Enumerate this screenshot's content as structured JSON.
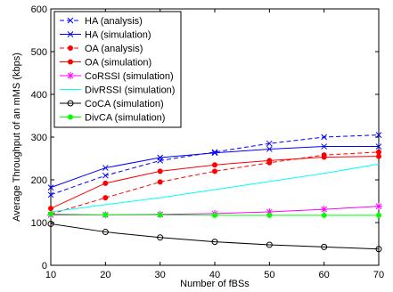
{
  "chart_data": {
    "type": "line",
    "xlabel": "Number of fBSs",
    "ylabel": "Average Throughput of an mMS (kbps)",
    "xlim": [
      10,
      70
    ],
    "ylim": [
      0,
      600
    ],
    "xticks": [
      10,
      20,
      30,
      40,
      50,
      60,
      70
    ],
    "yticks": [
      0,
      100,
      200,
      300,
      400,
      500,
      600
    ],
    "grid": false,
    "legend_position": "top-left",
    "x": [
      10,
      20,
      30,
      40,
      50,
      60,
      70
    ],
    "series": [
      {
        "name": "HA (analysis)",
        "values": [
          165,
          210,
          245,
          265,
          285,
          300,
          305
        ],
        "color": "#0000ff",
        "line": "dashed",
        "marker": "x"
      },
      {
        "name": "HA (simulation)",
        "values": [
          182,
          228,
          252,
          263,
          272,
          278,
          278
        ],
        "color": "#0000ff",
        "line": "solid",
        "marker": "x"
      },
      {
        "name": "OA (analysis)",
        "values": [
          120,
          158,
          195,
          220,
          240,
          258,
          265
        ],
        "color": "#ff0000",
        "line": "dashed",
        "marker": "dot"
      },
      {
        "name": "OA (simulation)",
        "values": [
          133,
          192,
          220,
          235,
          245,
          253,
          255
        ],
        "color": "#ff0000",
        "line": "solid",
        "marker": "dot"
      },
      {
        "name": "CoRSSI (simulation)",
        "values": [
          118,
          118,
          119,
          121,
          125,
          131,
          138
        ],
        "color": "#ff00ff",
        "line": "solid",
        "marker": "star"
      },
      {
        "name": "DivRSSI (simulation)",
        "values": [
          125,
          142,
          158,
          177,
          196,
          215,
          237
        ],
        "color": "#00ffff",
        "line": "solid",
        "marker": "none"
      },
      {
        "name": "CoCA (simulation)",
        "values": [
          97,
          78,
          65,
          55,
          48,
          43,
          38
        ],
        "color": "#000000",
        "line": "solid",
        "marker": "circle"
      },
      {
        "name": "DivCA (simulation)",
        "values": [
          120,
          118,
          118,
          117,
          117,
          117,
          117
        ],
        "color": "#00ff00",
        "line": "solid",
        "marker": "dot"
      }
    ]
  }
}
